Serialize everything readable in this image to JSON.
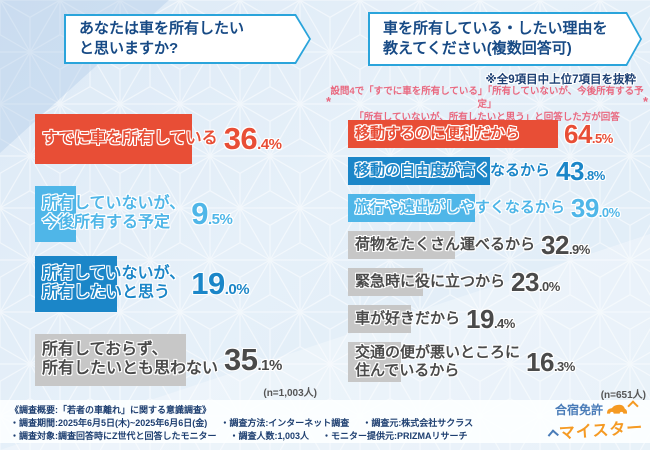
{
  "colors": {
    "red": "#e84e36",
    "blue": "#1b86c8",
    "light_blue": "#4fb6e8",
    "gray_bar": "#c7c7c7",
    "gray_text": "#4a4a4a",
    "navy": "#174a85",
    "pink": "#e9687f",
    "accent_border": "#2aa4db"
  },
  "left_panel": {
    "question_lines": [
      "あなたは車を所有したい",
      "と思いますか?"
    ],
    "n_label": "(n=1,003人)",
    "items": [
      {
        "label_lines": [
          "すでに車を所有している"
        ],
        "value": 36.4,
        "color_key": "red"
      },
      {
        "label_lines": [
          "所有していないが、",
          "今後所有する予定"
        ],
        "value": 9.5,
        "color_key": "light_blue"
      },
      {
        "label_lines": [
          "所有していないが、",
          "所有したいと思う"
        ],
        "value": 19.0,
        "color_key": "blue"
      },
      {
        "label_lines": [
          "所有しておらず、",
          "所有したいとも思わない"
        ],
        "value": 35.1,
        "color_key": "gray"
      }
    ]
  },
  "right_panel": {
    "question_lines": [
      "車を所有している・したい理由を",
      "教えてください(複数回答可)"
    ],
    "note": "※全9項目中上位7項目を抜粋",
    "footnote_lines": [
      "設問4で「すでに車を所有している」「所有していないが、今後所有する予定」",
      "「所有していないが、所有したいと思う」と回答した方が回答"
    ],
    "footnote_mark": "*",
    "n_label": "(n=651人)",
    "items": [
      {
        "label_lines": [
          "移動するのに便利だから"
        ],
        "value": 64.5,
        "color_key": "red"
      },
      {
        "label_lines": [
          "移動の自由度が高くなるから"
        ],
        "value": 43.8,
        "color_key": "blue"
      },
      {
        "label_lines": [
          "旅行や遠出がしやすくなるから"
        ],
        "value": 39.0,
        "color_key": "light_blue"
      },
      {
        "label_lines": [
          "荷物をたくさん運べるから"
        ],
        "value": 32.9,
        "color_key": "gray"
      },
      {
        "label_lines": [
          "緊急時に役に立つから"
        ],
        "value": 23.0,
        "color_key": "gray"
      },
      {
        "label_lines": [
          "車が好きだから"
        ],
        "value": 19.4,
        "color_key": "gray"
      },
      {
        "label_lines": [
          "交通の便が悪いところに",
          "住んでいるから"
        ],
        "value": 16.3,
        "color_key": "gray"
      }
    ]
  },
  "chart_data": [
    {
      "type": "bar",
      "orientation": "horizontal",
      "title": "あなたは車を所有したいと思いますか?",
      "categories": [
        "すでに車を所有している",
        "所有していないが、今後所有する予定",
        "所有していないが、所有したいと思う",
        "所有しておらず、所有したいとも思わない"
      ],
      "values": [
        36.4,
        9.5,
        19.0,
        35.1
      ],
      "unit": "%",
      "sample": "n=1,003人",
      "xlim": [
        0,
        70
      ],
      "grid": false,
      "legend": false
    },
    {
      "type": "bar",
      "orientation": "horizontal",
      "title": "車を所有している・したい理由を教えてください(複数回答可)",
      "subtitle": "※全9項目中上位7項目を抜粋",
      "categories": [
        "移動するのに便利だから",
        "移動の自由度が高くなるから",
        "旅行や遠出がしやすくなるから",
        "荷物をたくさん運べるから",
        "緊急時に役に立つから",
        "車が好きだから",
        "交通の便が悪いところに住んでいるから"
      ],
      "values": [
        64.5,
        43.8,
        39.0,
        32.9,
        23.0,
        19.4,
        16.3
      ],
      "unit": "%",
      "sample": "n=651人",
      "xlim": [
        0,
        70
      ],
      "grid": false,
      "legend": false
    }
  ],
  "footer": {
    "lines": [
      [
        "《調査概要:「若者の車離れ」に関する意識調査》"
      ],
      [
        "・調査期間:2025年6月5日(木)~2025年6月6日(金)",
        "・調査方法:インターネット調査",
        "・調査元:株式会社サクラス"
      ],
      [
        "・調査対象:調査回答時にZ世代と回答したモニター",
        "・調査人数:1,003人",
        "・モニター提供元:PRIZMAリサーチ"
      ]
    ]
  },
  "logo": {
    "top": "合宿免許",
    "bottom": "マイスター"
  }
}
